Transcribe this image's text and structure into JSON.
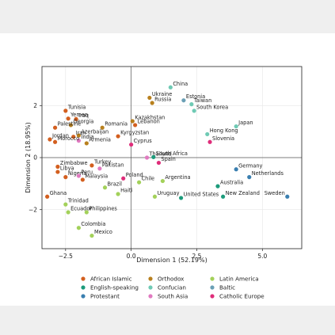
{
  "chart_data": {
    "type": "scatter",
    "xlabel": "Dimension 1 (52.19%)",
    "ylabel": "Dimension 2 (18.95%)",
    "xlim": [
      -3.4,
      6.5
    ],
    "ylim": [
      -3.5,
      3.5
    ],
    "xticks": [
      -2.5,
      0.0,
      2.5,
      5.0
    ],
    "yticks": [
      -2,
      0,
      2
    ],
    "xticklabels": [
      "−2.5",
      "0.0",
      "2.5",
      "5.0"
    ],
    "yticklabels": [
      "−2",
      "0",
      "2"
    ],
    "legend_position": "bottom",
    "groups": [
      {
        "name": "African Islamic",
        "color": "#d35f1f"
      },
      {
        "name": "Orthodox",
        "color": "#b8801e"
      },
      {
        "name": "Latin America",
        "color": "#a3d15a"
      },
      {
        "name": "English-speaking",
        "color": "#1c9b7b"
      },
      {
        "name": "Confucian",
        "color": "#6fcab4"
      },
      {
        "name": "Baltic",
        "color": "#6a9fb5"
      },
      {
        "name": "Protestant",
        "color": "#3a7fb0"
      },
      {
        "name": "South Asia",
        "color": "#e07ac0"
      },
      {
        "name": "Catholic Europe",
        "color": "#df2d7a"
      }
    ],
    "points": [
      {
        "label": "China",
        "x": 1.5,
        "y": 2.7,
        "group": "Confucian"
      },
      {
        "label": "Ukraine",
        "x": 0.7,
        "y": 2.3,
        "group": "Orthodox"
      },
      {
        "label": "Estonia",
        "x": 2.0,
        "y": 2.2,
        "group": "Baltic"
      },
      {
        "label": "Taiwan",
        "x": 2.3,
        "y": 2.05,
        "group": "Confucian"
      },
      {
        "label": "Russia",
        "x": 0.8,
        "y": 2.1,
        "group": "Orthodox"
      },
      {
        "label": "South Korea",
        "x": 2.4,
        "y": 1.8,
        "group": "Confucian"
      },
      {
        "label": "Tunisia",
        "x": -2.5,
        "y": 1.8,
        "group": "African Islamic"
      },
      {
        "label": "Yemen",
        "x": -2.4,
        "y": 1.5,
        "group": "African Islamic"
      },
      {
        "label": "Iraq",
        "x": -2.1,
        "y": 1.48,
        "group": "African Islamic"
      },
      {
        "label": "Kazakhstan",
        "x": 0.05,
        "y": 1.4,
        "group": "Orthodox"
      },
      {
        "label": "Lebanon",
        "x": 0.15,
        "y": 1.25,
        "group": "African Islamic"
      },
      {
        "label": "Georgia",
        "x": -2.3,
        "y": 1.25,
        "group": "Orthodox"
      },
      {
        "label": "Palestine",
        "x": -2.9,
        "y": 1.15,
        "group": "African Islamic"
      },
      {
        "label": "Romania",
        "x": -1.1,
        "y": 1.15,
        "group": "Orthodox"
      },
      {
        "label": "Japan",
        "x": 4.0,
        "y": 1.2,
        "group": "Confucian"
      },
      {
        "label": "Azerbaijan",
        "x": -2.0,
        "y": 0.85,
        "group": "Orthodox"
      },
      {
        "label": "Iran",
        "x": -2.2,
        "y": 0.8,
        "group": "African Islamic"
      },
      {
        "label": "Kyrgyzstan",
        "x": -0.5,
        "y": 0.82,
        "group": "African Islamic"
      },
      {
        "label": "Hong Kong",
        "x": 2.9,
        "y": 0.9,
        "group": "Confucian"
      },
      {
        "label": "India",
        "x": -2.0,
        "y": 0.65,
        "group": "South Asia"
      },
      {
        "label": "Slovenia",
        "x": 3.0,
        "y": 0.6,
        "group": "Catholic Europe"
      },
      {
        "label": "Armenia",
        "x": -1.7,
        "y": 0.55,
        "group": "Orthodox"
      },
      {
        "label": "Cyprus",
        "x": 0.0,
        "y": 0.5,
        "group": "Catholic Europe"
      },
      {
        "label": "Jordan",
        "x": -3.1,
        "y": 0.7,
        "group": "African Islamic"
      },
      {
        "label": "Morocco",
        "x": -2.9,
        "y": 0.6,
        "group": "African Islamic"
      },
      {
        "label": "Thailand",
        "x": 0.6,
        "y": 0.0,
        "group": "South Asia"
      },
      {
        "label": "South Africa",
        "x": 0.85,
        "y": 0.02,
        "group": "English-speaking"
      },
      {
        "label": "Spain",
        "x": 1.05,
        "y": -0.2,
        "group": "Catholic Europe"
      },
      {
        "label": "Zimbabwe",
        "x": -2.8,
        "y": -0.35,
        "group": "African Islamic"
      },
      {
        "label": "Turkey",
        "x": -1.5,
        "y": -0.3,
        "group": "African Islamic"
      },
      {
        "label": "Libya",
        "x": -2.8,
        "y": -0.55,
        "group": "African Islamic"
      },
      {
        "label": "Pakistan",
        "x": -1.2,
        "y": -0.42,
        "group": "South Asia"
      },
      {
        "label": "Nigeria",
        "x": -2.5,
        "y": -0.75,
        "group": "African Islamic"
      },
      {
        "label": "Peru",
        "x": -2.0,
        "y": -0.7,
        "group": "South Asia"
      },
      {
        "label": "Malaysia",
        "x": -1.85,
        "y": -0.85,
        "group": "African Islamic"
      },
      {
        "label": "Germany",
        "x": 4.0,
        "y": -0.45,
        "group": "Protestant"
      },
      {
        "label": "Netherlands",
        "x": 4.5,
        "y": -0.75,
        "group": "Protestant"
      },
      {
        "label": "Poland",
        "x": -0.3,
        "y": -0.8,
        "group": "Catholic Europe"
      },
      {
        "label": "Chile",
        "x": 0.3,
        "y": -0.95,
        "group": "Latin America"
      },
      {
        "label": "Argentina",
        "x": 1.2,
        "y": -0.9,
        "group": "Latin America"
      },
      {
        "label": "Australia",
        "x": 3.3,
        "y": -1.1,
        "group": "English-speaking"
      },
      {
        "label": "Brazil",
        "x": -1.0,
        "y": -1.15,
        "group": "Latin America"
      },
      {
        "label": "Haiti",
        "x": -0.5,
        "y": -1.4,
        "group": "Latin America"
      },
      {
        "label": "Ghana",
        "x": -3.2,
        "y": -1.5,
        "group": "African Islamic"
      },
      {
        "label": "Uruguay",
        "x": 0.9,
        "y": -1.5,
        "group": "Latin America"
      },
      {
        "label": "United States",
        "x": 1.9,
        "y": -1.55,
        "group": "English-speaking"
      },
      {
        "label": "New Zealand",
        "x": 3.5,
        "y": -1.5,
        "group": "English-speaking"
      },
      {
        "label": "Sweden",
        "x": 5.95,
        "y": -1.5,
        "group": "Protestant"
      },
      {
        "label": "Trinidad",
        "x": -2.5,
        "y": -1.8,
        "group": "Latin America"
      },
      {
        "label": "Ecuador",
        "x": -2.4,
        "y": -2.1,
        "group": "Latin America"
      },
      {
        "label": "Philippines",
        "x": -1.7,
        "y": -2.1,
        "group": "Latin America"
      },
      {
        "label": "Colombia",
        "x": -2.0,
        "y": -2.7,
        "group": "Latin America"
      },
      {
        "label": "Mexico",
        "x": -1.5,
        "y": -3.0,
        "group": "Latin America"
      }
    ]
  }
}
